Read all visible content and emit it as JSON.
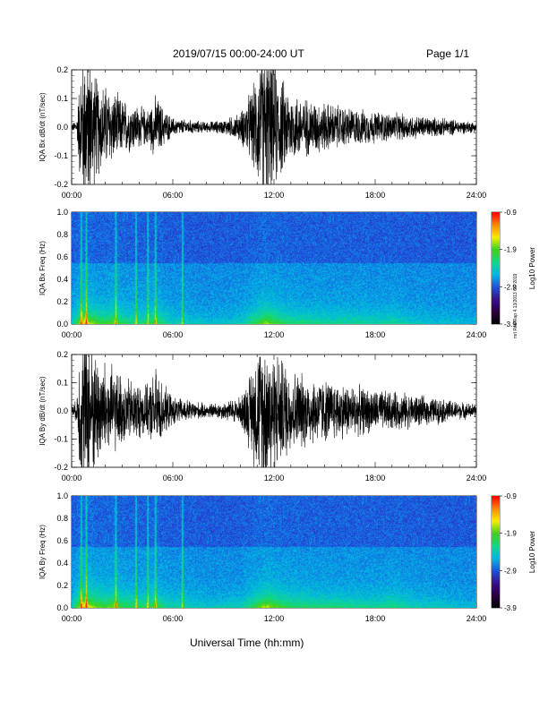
{
  "header": {
    "title": "2019/07/15  00:00-24:00 UT",
    "page": "Page 1/1"
  },
  "footer": {
    "xaxis_title": "Universal Time (hh:mm)"
  },
  "side_note": "mrl Red Rap 4.13/2013 OT 2019",
  "colors": {
    "trace": "#000000",
    "colorbar": [
      "#000000",
      "#2a0038",
      "#3a0f8e",
      "#1f4fe0",
      "#00b8e6",
      "#10d88a",
      "#3bd11a",
      "#f3f000",
      "#ff8800",
      "#ff0000"
    ]
  },
  "chart_data": [
    {
      "type": "line",
      "ylabel": "IQA Bx dB/dt (nT/sec)",
      "ylim": [
        -0.2,
        0.2
      ],
      "yticks": [
        "0.2",
        "0.1",
        "0.0",
        "-0.1",
        "-0.2"
      ],
      "xticks": [
        "00:00",
        "06:00",
        "12:00",
        "18:00",
        "24:00"
      ],
      "xlim_hours": [
        0,
        24
      ],
      "envelope": {
        "hours": [
          0,
          0.3,
          0.5,
          0.8,
          1.0,
          1.5,
          2.0,
          2.5,
          3.0,
          3.5,
          4.0,
          4.5,
          5.0,
          5.5,
          6.0,
          7.0,
          8.0,
          9.0,
          10.0,
          10.8,
          11.3,
          11.8,
          12.3,
          13.0,
          14.0,
          15.0,
          16.0,
          17.0,
          18.0,
          19.0,
          20.0,
          21.0,
          22.0,
          23.0,
          24.0
        ],
        "amplitude": [
          0.01,
          0.02,
          0.16,
          0.25,
          0.22,
          0.14,
          0.12,
          0.1,
          0.08,
          0.07,
          0.06,
          0.05,
          0.09,
          0.05,
          0.025,
          0.02,
          0.015,
          0.02,
          0.04,
          0.12,
          0.22,
          0.2,
          0.15,
          0.1,
          0.08,
          0.07,
          0.06,
          0.05,
          0.045,
          0.04,
          0.035,
          0.03,
          0.025,
          0.02,
          0.015
        ]
      }
    },
    {
      "type": "heatmap",
      "ylabel": "IQA Bx Freq (Hz)",
      "ylim": [
        0.0,
        1.0
      ],
      "yticks": [
        "1.0",
        "0.8",
        "0.6",
        "0.4",
        "0.2",
        "0.0"
      ],
      "xticks": [
        "00:00",
        "06:00",
        "12:00",
        "18:00",
        "24:00"
      ],
      "colorbar": {
        "label": "Log10 Power",
        "ticks": [
          "-0.9",
          "-1.9",
          "-2.9",
          "-3.9"
        ],
        "range": [
          -3.9,
          -0.9
        ]
      },
      "activity": {
        "hours": [
          0,
          0.4,
          0.7,
          1.0,
          1.5,
          2.0,
          2.5,
          3.0,
          3.5,
          4.0,
          4.5,
          4.9,
          5.5,
          6.0,
          6.5,
          7.0,
          8.0,
          10.0,
          11.0,
          11.5,
          12.0,
          13.0,
          15.0,
          17.0,
          18.0,
          19.0,
          20.0,
          22.0,
          24.0
        ],
        "level": [
          0.2,
          0.55,
          0.8,
          0.65,
          0.5,
          0.45,
          0.55,
          0.4,
          0.35,
          0.35,
          0.35,
          0.5,
          0.3,
          0.2,
          0.25,
          0.2,
          0.15,
          0.2,
          0.45,
          0.6,
          0.5,
          0.35,
          0.3,
          0.28,
          0.25,
          0.3,
          0.2,
          0.15,
          0.1
        ]
      },
      "vertical_bursts_hours": [
        0.55,
        0.85,
        2.6,
        3.8,
        4.5,
        4.95,
        6.55
      ]
    },
    {
      "type": "line",
      "ylabel": "IQA By dB/dt (nT/sec)",
      "ylim": [
        -0.2,
        0.2
      ],
      "yticks": [
        "0.2",
        "0.1",
        "0.0",
        "-0.1",
        "-0.2"
      ],
      "xticks": [
        "00:00",
        "06:00",
        "12:00",
        "18:00",
        "24:00"
      ],
      "xlim_hours": [
        0,
        24
      ],
      "envelope": {
        "hours": [
          0,
          0.3,
          0.5,
          0.8,
          1.0,
          1.5,
          2.0,
          2.5,
          3.0,
          3.5,
          4.0,
          4.5,
          5.0,
          5.5,
          6.0,
          7.0,
          8.0,
          9.0,
          10.0,
          10.5,
          11.0,
          11.5,
          12.0,
          13.0,
          14.0,
          15.0,
          16.0,
          17.0,
          18.0,
          19.0,
          20.0,
          21.0,
          22.0,
          23.0,
          24.0
        ],
        "amplitude": [
          0.015,
          0.03,
          0.2,
          0.25,
          0.22,
          0.16,
          0.14,
          0.12,
          0.1,
          0.09,
          0.08,
          0.07,
          0.12,
          0.07,
          0.04,
          0.03,
          0.02,
          0.025,
          0.04,
          0.1,
          0.18,
          0.22,
          0.18,
          0.12,
          0.1,
          0.09,
          0.08,
          0.07,
          0.06,
          0.055,
          0.05,
          0.04,
          0.035,
          0.025,
          0.02
        ]
      }
    },
    {
      "type": "heatmap",
      "ylabel": "IQA By Freq (Hz)",
      "ylim": [
        0.0,
        1.0
      ],
      "yticks": [
        "1.0",
        "0.8",
        "0.6",
        "0.4",
        "0.2",
        "0.0"
      ],
      "xticks": [
        "00:00",
        "06:00",
        "12:00",
        "18:00",
        "24:00"
      ],
      "colorbar": {
        "label": "Log10 Power",
        "ticks": [
          "-0.9",
          "-1.9",
          "-2.9",
          "-3.9"
        ],
        "range": [
          -3.9,
          -0.9
        ]
      },
      "activity": {
        "hours": [
          0,
          0.4,
          0.7,
          1.0,
          1.5,
          2.0,
          2.5,
          3.0,
          3.5,
          4.0,
          4.5,
          4.9,
          5.5,
          6.0,
          6.5,
          7.0,
          8.0,
          10.0,
          11.0,
          11.5,
          12.0,
          13.0,
          15.0,
          17.0,
          18.0,
          19.0,
          20.0,
          22.0,
          24.0
        ],
        "level": [
          0.2,
          0.6,
          0.85,
          0.7,
          0.55,
          0.5,
          0.6,
          0.45,
          0.4,
          0.4,
          0.4,
          0.55,
          0.3,
          0.25,
          0.3,
          0.22,
          0.18,
          0.22,
          0.5,
          0.65,
          0.55,
          0.4,
          0.35,
          0.32,
          0.28,
          0.35,
          0.25,
          0.18,
          0.12
        ]
      },
      "vertical_bursts_hours": [
        0.55,
        0.85,
        2.6,
        3.8,
        4.5,
        4.95,
        6.55
      ]
    }
  ]
}
